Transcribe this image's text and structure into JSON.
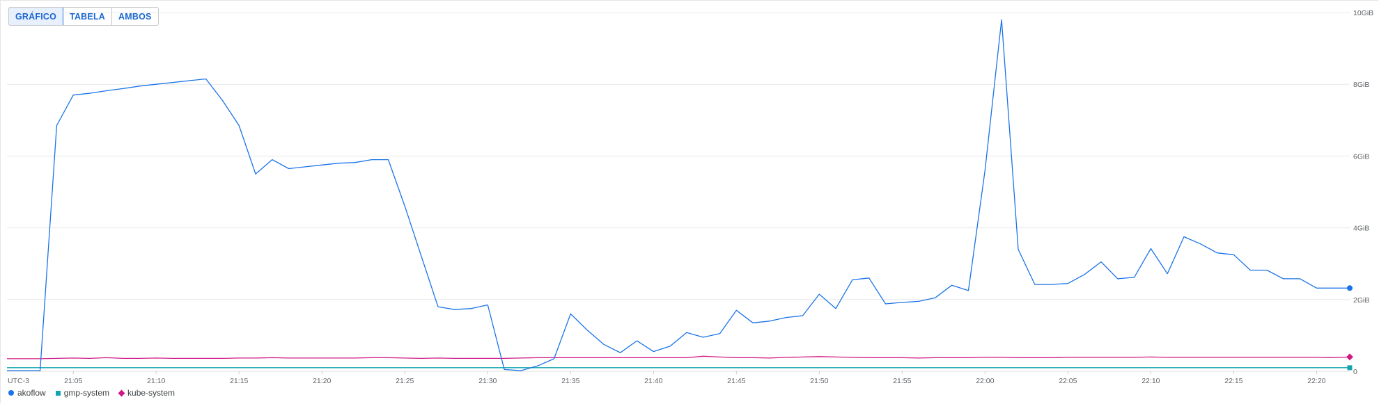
{
  "toolbar": {
    "buttons": [
      {
        "label": "GRÁFICO",
        "active": true
      },
      {
        "label": "TABELA",
        "active": false
      },
      {
        "label": "AMBOS",
        "active": false
      }
    ]
  },
  "colors": {
    "akoflow": "#1a73e8",
    "gmp-system": "#12a4af",
    "kube-system": "#d01884",
    "grid": "#e8e8e8",
    "axis_text": "#5f6368"
  },
  "chart_data": {
    "type": "line",
    "timezone_label": "UTC-3",
    "x_tick_labels": [
      "21:05",
      "21:10",
      "21:15",
      "21:20",
      "21:25",
      "21:30",
      "21:35",
      "21:40",
      "21:45",
      "21:50",
      "21:55",
      "22:00",
      "22:05",
      "22:10",
      "22:15",
      "22:20"
    ],
    "x_range": [
      "21:01",
      "22:22"
    ],
    "y_tick_labels": [
      "0",
      "2GiB",
      "4GiB",
      "6GiB",
      "8GiB",
      "10GiB"
    ],
    "ylim": [
      0,
      10
    ],
    "y_unit": "GiB",
    "legend_position": "bottom-left",
    "grid": true,
    "x": [
      "21:01",
      "21:02",
      "21:03",
      "21:04",
      "21:05",
      "21:06",
      "21:07",
      "21:08",
      "21:09",
      "21:10",
      "21:11",
      "21:12",
      "21:13",
      "21:14",
      "21:15",
      "21:16",
      "21:17",
      "21:18",
      "21:19",
      "21:20",
      "21:21",
      "21:22",
      "21:23",
      "21:24",
      "21:25",
      "21:26",
      "21:27",
      "21:28",
      "21:29",
      "21:30",
      "21:31",
      "21:32",
      "21:33",
      "21:34",
      "21:35",
      "21:36",
      "21:37",
      "21:38",
      "21:39",
      "21:40",
      "21:41",
      "21:42",
      "21:43",
      "21:44",
      "21:45",
      "21:46",
      "21:47",
      "21:48",
      "21:49",
      "21:50",
      "21:51",
      "21:52",
      "21:53",
      "21:54",
      "21:55",
      "21:56",
      "21:57",
      "21:58",
      "21:59",
      "22:00",
      "22:01",
      "22:02",
      "22:03",
      "22:04",
      "22:05",
      "22:06",
      "22:07",
      "22:08",
      "22:09",
      "22:10",
      "22:11",
      "22:12",
      "22:13",
      "22:14",
      "22:15",
      "22:16",
      "22:17",
      "22:18",
      "22:19",
      "22:20",
      "22:21",
      "22:22"
    ],
    "series": [
      {
        "name": "akoflow",
        "marker": "circle",
        "values": [
          0.02,
          0.02,
          0.02,
          6.85,
          7.7,
          7.75,
          7.82,
          7.88,
          7.95,
          8.0,
          8.05,
          8.1,
          8.15,
          7.55,
          6.85,
          5.5,
          5.9,
          5.65,
          5.7,
          5.75,
          5.8,
          5.82,
          5.9,
          5.9,
          4.6,
          3.2,
          1.8,
          1.72,
          1.75,
          1.85,
          0.05,
          0.02,
          0.15,
          0.35,
          1.6,
          1.15,
          0.75,
          0.52,
          0.85,
          0.55,
          0.7,
          1.08,
          0.95,
          1.05,
          1.7,
          1.35,
          1.4,
          1.5,
          1.55,
          2.15,
          1.75,
          2.55,
          2.6,
          1.88,
          1.92,
          1.95,
          2.05,
          2.4,
          2.25,
          5.6,
          9.8,
          3.4,
          2.42,
          2.42,
          2.45,
          2.7,
          3.05,
          2.58,
          2.62,
          3.42,
          2.72,
          3.75,
          3.55,
          3.3,
          3.25,
          2.82,
          2.82,
          2.58,
          2.58,
          2.32,
          2.32,
          2.32
        ]
      },
      {
        "name": "gmp-system",
        "marker": "square",
        "values": [
          0.1,
          0.1,
          0.1,
          0.1,
          0.1,
          0.1,
          0.1,
          0.1,
          0.1,
          0.1,
          0.1,
          0.1,
          0.1,
          0.1,
          0.1,
          0.1,
          0.1,
          0.1,
          0.1,
          0.1,
          0.1,
          0.1,
          0.1,
          0.1,
          0.1,
          0.1,
          0.1,
          0.1,
          0.1,
          0.1,
          0.1,
          0.1,
          0.1,
          0.1,
          0.1,
          0.1,
          0.1,
          0.1,
          0.1,
          0.1,
          0.1,
          0.1,
          0.1,
          0.1,
          0.1,
          0.1,
          0.1,
          0.1,
          0.1,
          0.1,
          0.1,
          0.1,
          0.1,
          0.1,
          0.1,
          0.1,
          0.1,
          0.1,
          0.1,
          0.1,
          0.1,
          0.1,
          0.1,
          0.1,
          0.1,
          0.1,
          0.1,
          0.1,
          0.1,
          0.1,
          0.1,
          0.1,
          0.1,
          0.1,
          0.1,
          0.1,
          0.1,
          0.1,
          0.1,
          0.1,
          0.1,
          0.1
        ]
      },
      {
        "name": "kube-system",
        "marker": "diamond",
        "values": [
          0.35,
          0.35,
          0.35,
          0.36,
          0.37,
          0.36,
          0.38,
          0.36,
          0.36,
          0.37,
          0.36,
          0.36,
          0.36,
          0.36,
          0.37,
          0.37,
          0.38,
          0.37,
          0.37,
          0.37,
          0.37,
          0.37,
          0.38,
          0.38,
          0.37,
          0.36,
          0.37,
          0.36,
          0.36,
          0.36,
          0.36,
          0.37,
          0.38,
          0.38,
          0.38,
          0.38,
          0.38,
          0.38,
          0.38,
          0.38,
          0.38,
          0.38,
          0.42,
          0.4,
          0.38,
          0.38,
          0.37,
          0.39,
          0.4,
          0.41,
          0.4,
          0.39,
          0.38,
          0.38,
          0.38,
          0.37,
          0.38,
          0.38,
          0.38,
          0.39,
          0.39,
          0.38,
          0.38,
          0.38,
          0.39,
          0.39,
          0.39,
          0.39,
          0.39,
          0.4,
          0.39,
          0.39,
          0.39,
          0.39,
          0.39,
          0.39,
          0.39,
          0.39,
          0.39,
          0.39,
          0.38,
          0.4
        ]
      }
    ]
  }
}
